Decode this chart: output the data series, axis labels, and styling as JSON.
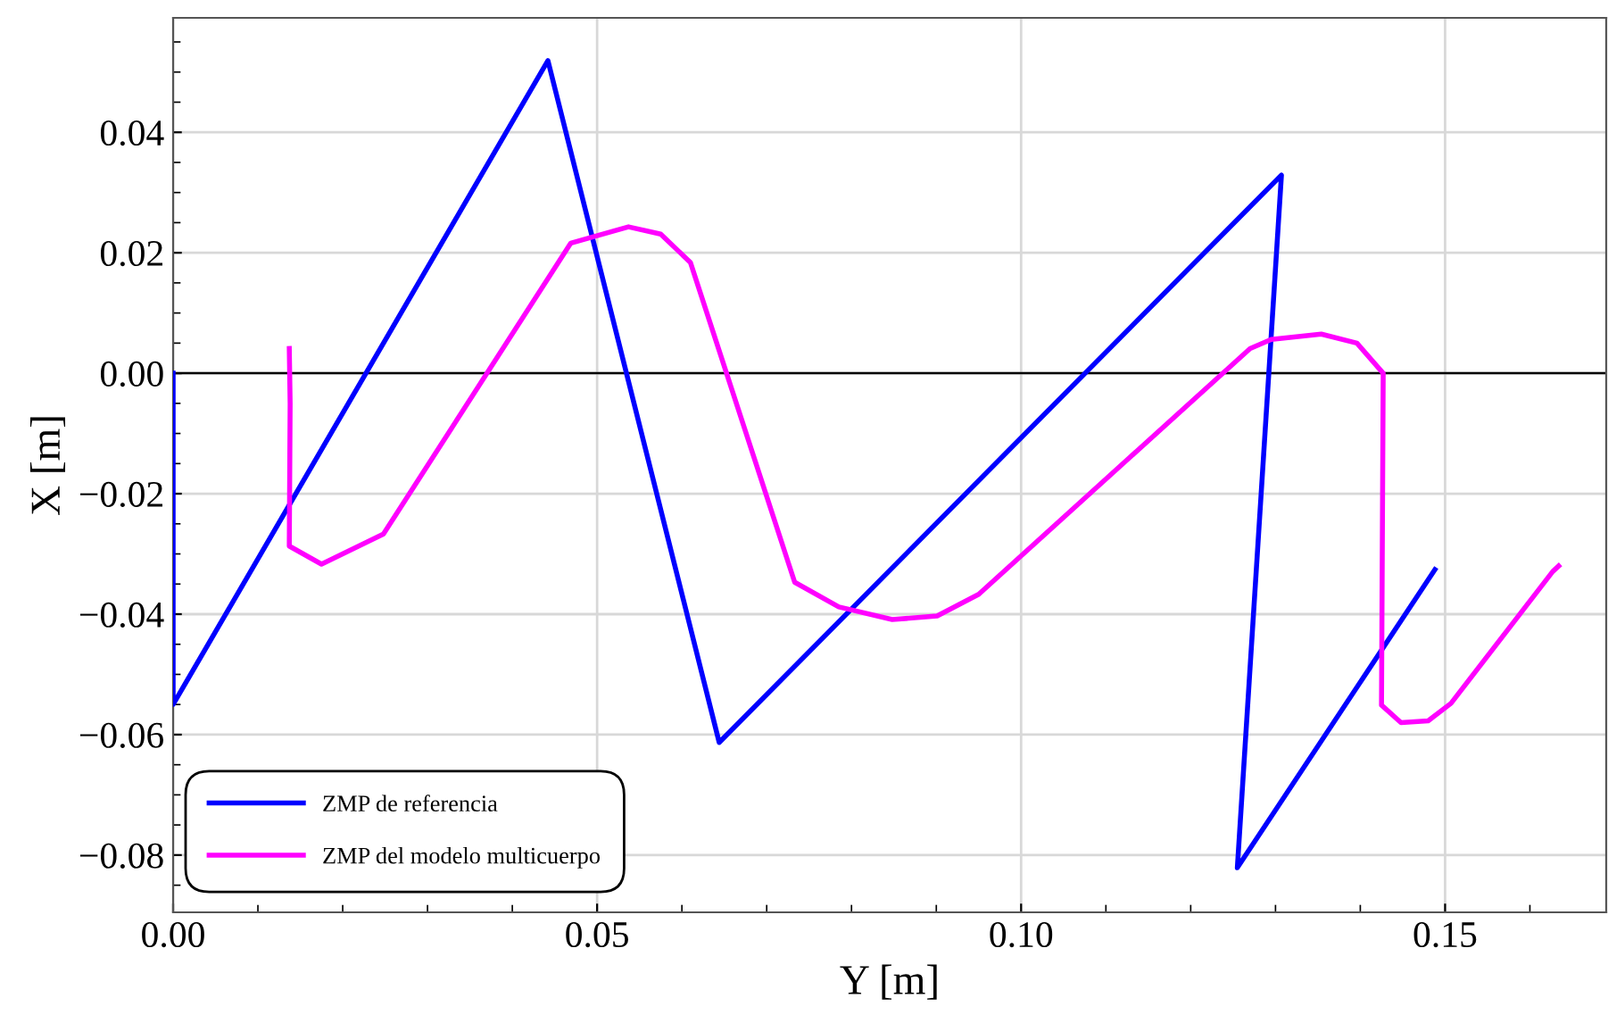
{
  "chart_data": {
    "type": "line",
    "xlabel": "Y [m]",
    "ylabel": "X [m]",
    "xlim": [
      0,
      0.169
    ],
    "ylim": [
      -0.0895,
      0.059
    ],
    "xticks": [
      {
        "value": 0,
        "label": "0.00"
      },
      0.05,
      {
        "value": 0.1,
        "label": "0.10"
      },
      0.15
    ],
    "yticks": [
      {
        "value": -0.08,
        "label": "−0.08"
      },
      {
        "value": -0.06,
        "label": "−0.06"
      },
      {
        "value": -0.04,
        "label": "−0.04"
      },
      {
        "value": -0.02,
        "label": "−0.02"
      },
      {
        "value": 0,
        "label": "0.00"
      },
      0.02,
      0.04
    ],
    "grid": true,
    "legend": "bottom left",
    "marker": "none",
    "line_style": "solid",
    "ref_lines": [
      {
        "axis": "y",
        "value": 0,
        "color": "#000000"
      }
    ],
    "series": [
      {
        "name": "ZMP de referencia",
        "color": "#0000ff",
        "x": [
          0,
          0,
          0.0442,
          0.0644,
          0.1307,
          0.1255,
          0.1488
        ],
        "values": [
          0,
          -0.055,
          0.0519,
          -0.0613,
          0.0329,
          -0.0821,
          -0.0326
        ]
      },
      {
        "name": "ZMP del modelo multicuerpo",
        "color": "#ff00ff",
        "x": [
          0.0137,
          0.0138,
          0.0137,
          0.0175,
          0.0248,
          0.0469,
          0.0537,
          0.0575,
          0.061,
          0.0733,
          0.0785,
          0.0848,
          0.0901,
          0.095,
          0.127,
          0.1295,
          0.1354,
          0.1396,
          0.1427,
          0.1425,
          0.1448,
          0.148,
          0.1507,
          0.1627,
          0.1634
        ],
        "values": [
          0.0041,
          -0.005,
          -0.0287,
          -0.0317,
          -0.0267,
          0.0216,
          0.0243,
          0.0231,
          0.0184,
          -0.0347,
          -0.0388,
          -0.0409,
          -0.0403,
          -0.0367,
          0.0041,
          0.0056,
          0.0065,
          0.005,
          0.0,
          -0.0551,
          -0.058,
          -0.0577,
          -0.0548,
          -0.0329,
          -0.032
        ]
      }
    ]
  }
}
